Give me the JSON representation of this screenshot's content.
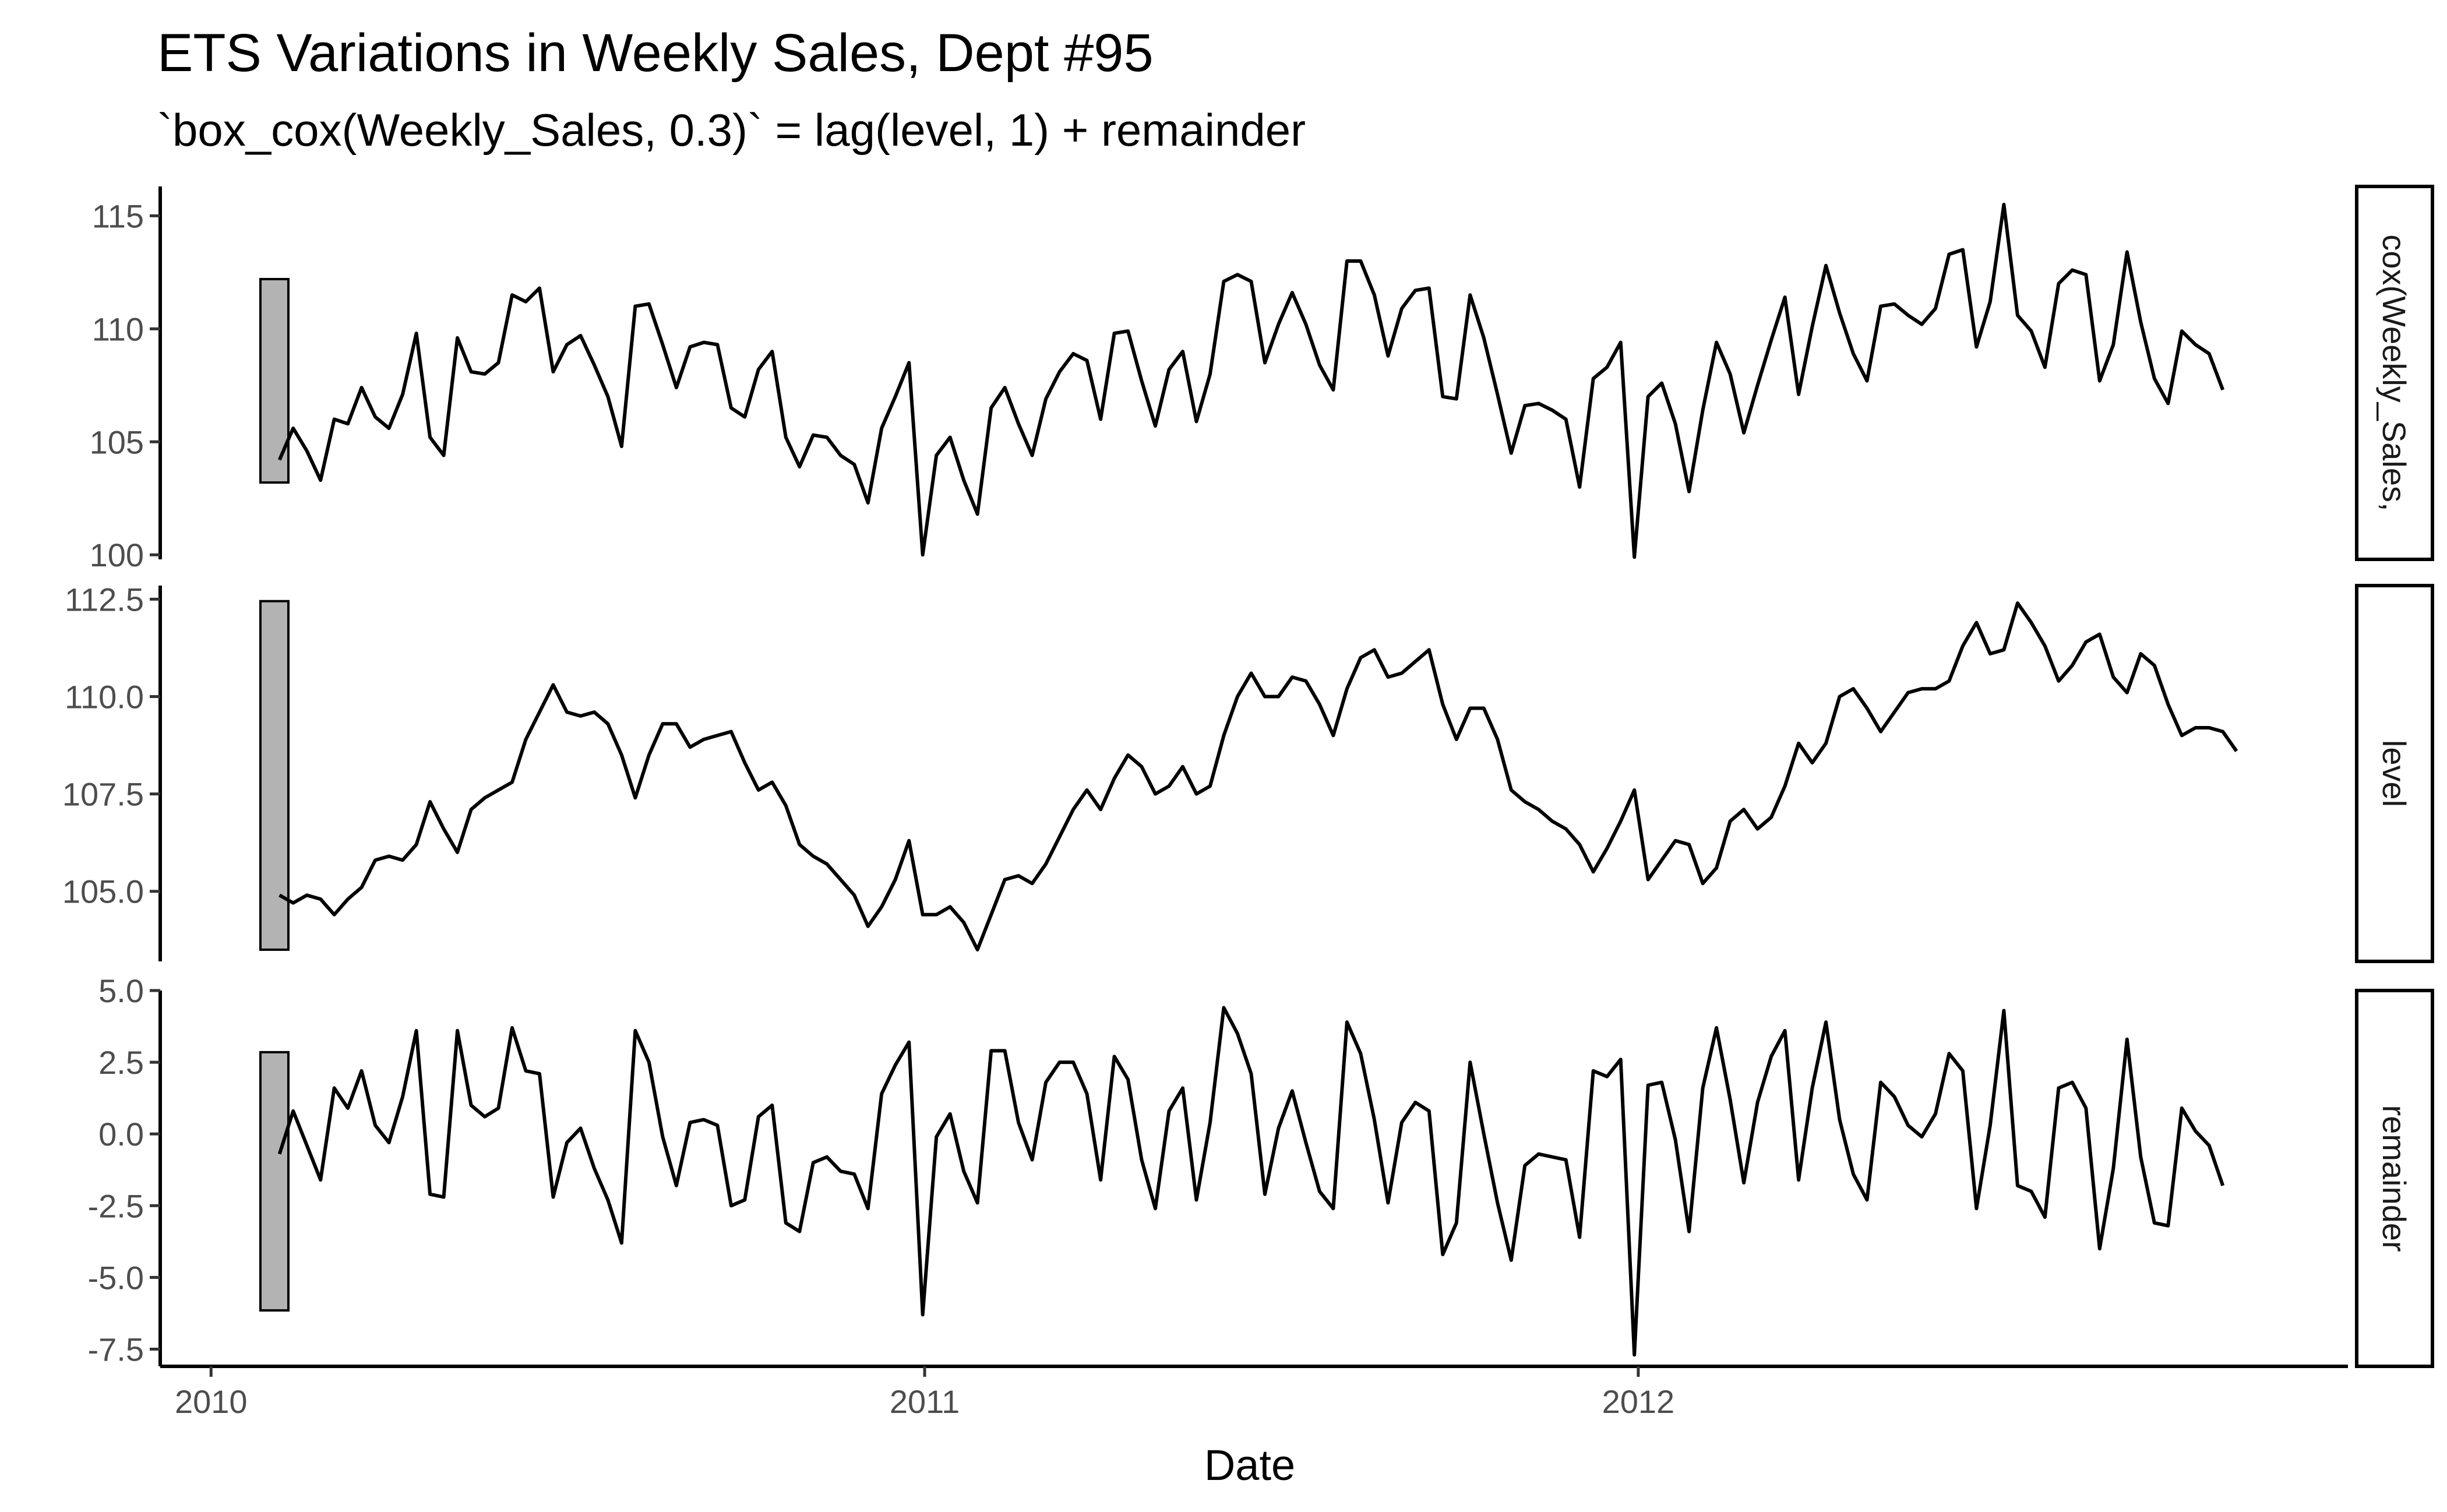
{
  "chart_data": {
    "type": "line",
    "title": "ETS Variations in Weekly Sales, Dept #95",
    "subtitle": "`box_cox(Weekly_Sales, 0.3)` = lag(level, 1) + remainder",
    "xlabel": "Date",
    "x_ticks": [
      "2010",
      "2011",
      "2012"
    ],
    "x_start": "2010-02-05",
    "x_step_days": 7,
    "xlim": [
      "2009-12-06",
      "2012-12-29"
    ],
    "panels": [
      {
        "name": "box_cox(Weekly_Sales, 0.3)",
        "strip_label": "cox(Weekly_Sales,",
        "ylim": [
          99.8,
          116.3
        ],
        "y_ticks": [
          100,
          105,
          110,
          115
        ],
        "y_tick_labels": [
          "100",
          "105",
          "110",
          "115"
        ],
        "scale_bar": [
          103.2,
          112.2
        ],
        "values": [
          104.2,
          105.6,
          104.6,
          103.3,
          106.0,
          105.8,
          107.4,
          106.1,
          105.6,
          107.1,
          109.8,
          105.2,
          104.4,
          109.6,
          108.1,
          108.0,
          108.5,
          111.5,
          111.2,
          111.8,
          108.1,
          109.3,
          109.7,
          108.4,
          107.0,
          104.8,
          111.0,
          111.1,
          109.3,
          107.4,
          109.2,
          109.4,
          109.3,
          106.5,
          106.1,
          108.2,
          109.0,
          105.2,
          103.9,
          105.3,
          105.2,
          104.4,
          104.0,
          102.3,
          105.6,
          107.0,
          108.5,
          100.0,
          104.4,
          105.2,
          103.3,
          101.8,
          106.5,
          107.4,
          105.8,
          104.4,
          106.9,
          108.1,
          108.9,
          108.6,
          106.0,
          109.8,
          109.9,
          107.7,
          105.7,
          108.2,
          109.0,
          105.9,
          108.0,
          112.1,
          112.4,
          112.1,
          108.5,
          110.2,
          111.6,
          110.2,
          108.4,
          107.3,
          113.0,
          113.0,
          111.5,
          108.8,
          110.9,
          111.7,
          111.8,
          107.0,
          106.9,
          111.5,
          109.6,
          107.1,
          104.5,
          106.6,
          106.7,
          106.4,
          106.0,
          103.0,
          107.8,
          108.3,
          109.4,
          99.9,
          107.0,
          107.6,
          105.8,
          102.8,
          106.4,
          109.4,
          108.0,
          105.4,
          107.5,
          109.5,
          111.4,
          107.1,
          110.1,
          112.8,
          110.7,
          108.9,
          107.7,
          111.0,
          111.1,
          110.6,
          110.2,
          110.9,
          113.3,
          113.5,
          109.2,
          111.2,
          115.5,
          110.6,
          109.9,
          108.3,
          112.0,
          112.6,
          112.4,
          107.7,
          109.3,
          113.4,
          110.3,
          107.8,
          106.7,
          109.9,
          109.3,
          108.9,
          107.3
        ]
      },
      {
        "name": "level",
        "strip_label": "level",
        "ylim": [
          103.2,
          112.85
        ],
        "y_ticks": [
          105.0,
          107.5,
          110.0,
          112.5
        ],
        "y_tick_labels": [
          "105.0",
          "107.5",
          "110.0",
          "112.5"
        ],
        "scale_bar": [
          103.5,
          112.45
        ],
        "values": [
          104.9,
          104.7,
          104.9,
          104.8,
          104.4,
          104.8,
          105.1,
          105.8,
          105.9,
          105.8,
          106.2,
          107.3,
          106.6,
          106.0,
          107.1,
          107.4,
          107.6,
          107.8,
          108.9,
          109.6,
          110.3,
          109.6,
          109.5,
          109.6,
          109.3,
          108.5,
          107.4,
          108.5,
          109.3,
          109.3,
          108.7,
          108.9,
          109.0,
          109.1,
          108.3,
          107.6,
          107.8,
          107.2,
          106.2,
          105.9,
          105.7,
          105.3,
          104.9,
          104.1,
          104.6,
          105.3,
          106.3,
          104.4,
          104.4,
          104.6,
          104.2,
          103.5,
          104.4,
          105.3,
          105.4,
          105.2,
          105.7,
          106.4,
          107.1,
          107.6,
          107.1,
          107.9,
          108.5,
          108.2,
          107.5,
          107.7,
          108.2,
          107.5,
          107.7,
          109.0,
          110.0,
          110.6,
          110.0,
          110.0,
          110.5,
          110.4,
          109.8,
          109.0,
          110.2,
          111.0,
          111.2,
          110.5,
          110.6,
          110.9,
          111.2,
          109.8,
          108.9,
          109.7,
          109.7,
          108.9,
          107.6,
          107.3,
          107.1,
          106.8,
          106.6,
          106.2,
          105.5,
          106.1,
          106.8,
          107.6,
          105.3,
          105.8,
          106.3,
          106.2,
          105.2,
          105.6,
          106.8,
          107.1,
          106.6,
          106.9,
          107.7,
          108.8,
          108.3,
          108.8,
          110.0,
          110.2,
          109.7,
          109.1,
          109.6,
          110.1,
          110.2,
          110.2,
          110.4,
          111.3,
          111.9,
          111.1,
          111.2,
          112.4,
          111.9,
          111.3,
          110.4,
          110.8,
          111.4,
          111.6,
          110.5,
          110.1,
          111.1,
          110.8,
          109.8,
          109.0,
          109.2,
          109.2,
          109.1,
          108.6
        ]
      },
      {
        "name": "remainder",
        "strip_label": "remainder",
        "ylim": [
          -8.1,
          5.0
        ],
        "y_ticks": [
          -7.5,
          -5.0,
          -2.5,
          0.0,
          2.5,
          5.0
        ],
        "y_tick_labels": [
          "-7.5",
          "-5.0",
          "-2.5",
          "0.0",
          "2.5",
          "5.0"
        ],
        "scale_bar": [
          -6.15,
          2.85
        ],
        "values": [
          -0.7,
          0.8,
          -0.4,
          -1.6,
          1.6,
          0.9,
          2.2,
          0.3,
          -0.3,
          1.3,
          3.6,
          -2.1,
          -2.2,
          3.6,
          1.0,
          0.6,
          0.9,
          3.7,
          2.2,
          2.1,
          -2.2,
          -0.3,
          0.2,
          -1.2,
          -2.3,
          -3.8,
          3.6,
          2.5,
          -0.1,
          -1.8,
          0.4,
          0.5,
          0.3,
          -2.5,
          -2.3,
          0.6,
          1.0,
          -3.1,
          -3.4,
          -1.0,
          -0.8,
          -1.3,
          -1.4,
          -2.6,
          1.4,
          2.4,
          3.2,
          -6.3,
          -0.1,
          0.7,
          -1.3,
          -2.4,
          2.9,
          2.9,
          0.4,
          -0.9,
          1.8,
          2.5,
          2.5,
          1.4,
          -1.6,
          2.7,
          1.9,
          -0.9,
          -2.6,
          0.8,
          1.6,
          -2.3,
          0.4,
          4.4,
          3.5,
          2.1,
          -2.1,
          0.2,
          1.5,
          -0.3,
          -2.0,
          -2.6,
          3.9,
          2.8,
          0.5,
          -2.4,
          0.4,
          1.1,
          0.8,
          -4.2,
          -3.1,
          2.5,
          0.0,
          -2.4,
          -4.4,
          -1.1,
          -0.7,
          -0.8,
          -0.9,
          -3.6,
          2.2,
          2.0,
          2.6,
          -7.7,
          1.7,
          1.8,
          -0.2,
          -3.4,
          1.6,
          3.7,
          1.2,
          -1.7,
          1.1,
          2.7,
          3.6,
          -1.6,
          1.6,
          3.9,
          0.5,
          -1.4,
          -2.3,
          1.8,
          1.3,
          0.3,
          -0.1,
          0.7,
          2.8,
          2.2,
          -2.6,
          0.3,
          4.3,
          -1.8,
          -2.0,
          -2.9,
          1.6,
          1.8,
          0.9,
          -4.0,
          -1.2,
          3.3,
          -0.8,
          -3.1,
          -3.2,
          0.9,
          0.1,
          -0.4,
          -1.8
        ]
      }
    ]
  }
}
